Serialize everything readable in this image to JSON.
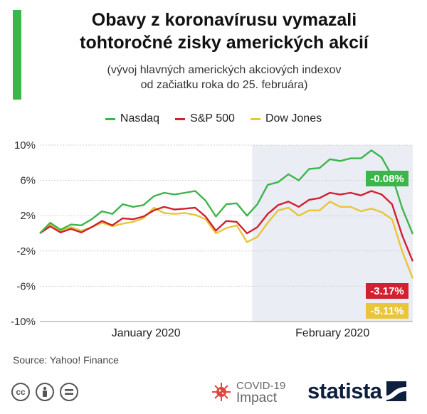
{
  "header": {
    "title_line1": "Obavy z koronavírusu vymazali",
    "title_line2": "tohtoročné zisky amerických akcií",
    "subtitle_line1": "(vývoj hlavných amerických akciových indexov",
    "subtitle_line2": "od začiatku roka do 25. februára)"
  },
  "colors": {
    "accent": "#3cb54a",
    "nasdaq": "#3cb54a",
    "sp500": "#d1202f",
    "dow": "#e8c53a",
    "shade": "#eaedf3",
    "grid": "#d0d0d0"
  },
  "chart_data": {
    "type": "line",
    "ylim": [
      -10,
      10
    ],
    "yticks": [
      10,
      6,
      2,
      -2,
      -6,
      -10
    ],
    "ytick_labels": [
      "10%",
      "6%",
      "2%",
      "-2%",
      "-6%",
      "-10%"
    ],
    "xlabel": "",
    "ylabel": "",
    "x": [
      "2020-01-02",
      "2020-01-03",
      "2020-01-06",
      "2020-01-07",
      "2020-01-08",
      "2020-01-09",
      "2020-01-10",
      "2020-01-13",
      "2020-01-14",
      "2020-01-15",
      "2020-01-16",
      "2020-01-17",
      "2020-01-21",
      "2020-01-22",
      "2020-01-23",
      "2020-01-24",
      "2020-01-27",
      "2020-01-28",
      "2020-01-29",
      "2020-01-30",
      "2020-01-31",
      "2020-02-03",
      "2020-02-04",
      "2020-02-05",
      "2020-02-06",
      "2020-02-07",
      "2020-02-10",
      "2020-02-11",
      "2020-02-12",
      "2020-02-13",
      "2020-02-14",
      "2020-02-18",
      "2020-02-19",
      "2020-02-20",
      "2020-02-21",
      "2020-02-24",
      "2020-02-25"
    ],
    "x_group_labels": [
      "January 2020",
      "February 2020"
    ],
    "shaded_range": [
      "2020-02-03",
      "2020-02-25"
    ],
    "series": [
      {
        "name": "Nasdaq",
        "values": [
          0,
          1.2,
          0.4,
          1.0,
          0.9,
          1.6,
          2.5,
          2.2,
          3.3,
          3.0,
          3.2,
          4.2,
          4.6,
          4.4,
          4.6,
          4.8,
          3.7,
          1.9,
          3.3,
          3.4,
          2.0,
          3.3,
          5.5,
          5.8,
          6.7,
          6.0,
          7.3,
          7.4,
          8.4,
          8.2,
          8.5,
          8.5,
          9.4,
          8.6,
          6.5,
          2.8,
          -0.08
        ],
        "end_label": "-0.08%"
      },
      {
        "name": "S&P 500",
        "values": [
          0,
          0.8,
          0.1,
          0.5,
          0.1,
          0.7,
          1.4,
          0.9,
          1.7,
          1.6,
          1.9,
          2.6,
          3.0,
          2.7,
          2.8,
          2.9,
          1.9,
          0.3,
          1.4,
          1.3,
          0.0,
          0.7,
          2.2,
          3.2,
          3.6,
          3.0,
          3.8,
          4.0,
          4.6,
          4.4,
          4.6,
          4.3,
          4.8,
          4.4,
          3.3,
          -0.3,
          -3.17
        ],
        "end_label": "-3.17%"
      },
      {
        "name": "Dow Jones",
        "values": [
          0,
          1.0,
          0.3,
          0.7,
          0.3,
          0.7,
          1.2,
          0.8,
          1.1,
          1.3,
          1.7,
          2.9,
          2.3,
          2.2,
          2.3,
          2.1,
          1.6,
          0.0,
          0.6,
          0.9,
          -1.0,
          -0.4,
          1.2,
          2.6,
          2.9,
          2.0,
          2.6,
          2.6,
          3.6,
          3.0,
          3.0,
          2.5,
          2.8,
          2.4,
          1.6,
          -2.1,
          -5.11
        ],
        "end_label": "-5.11%"
      }
    ],
    "legend_position": "top-center",
    "grid": true
  },
  "source": "Source: Yahoo! Finance",
  "footer": {
    "covid_line1": "COVID-19",
    "covid_line2": "Impact",
    "brand": "statista"
  }
}
